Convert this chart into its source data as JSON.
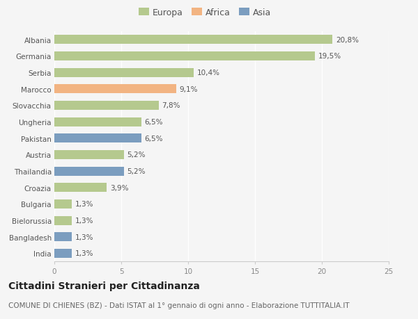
{
  "categories": [
    "Albania",
    "Germania",
    "Serbia",
    "Marocco",
    "Slovacchia",
    "Ungheria",
    "Pakistan",
    "Austria",
    "Thailandia",
    "Croazia",
    "Bulgaria",
    "Bielorussia",
    "Bangladesh",
    "India"
  ],
  "values": [
    20.8,
    19.5,
    10.4,
    9.1,
    7.8,
    6.5,
    6.5,
    5.2,
    5.2,
    3.9,
    1.3,
    1.3,
    1.3,
    1.3
  ],
  "labels": [
    "20,8%",
    "19,5%",
    "10,4%",
    "9,1%",
    "7,8%",
    "6,5%",
    "6,5%",
    "5,2%",
    "5,2%",
    "3,9%",
    "1,3%",
    "1,3%",
    "1,3%",
    "1,3%"
  ],
  "continent": [
    "Europa",
    "Europa",
    "Europa",
    "Africa",
    "Europa",
    "Europa",
    "Asia",
    "Europa",
    "Asia",
    "Europa",
    "Europa",
    "Europa",
    "Asia",
    "Asia"
  ],
  "colors": {
    "Europa": "#b5c98e",
    "Africa": "#f2b482",
    "Asia": "#7b9dbf"
  },
  "legend_items": [
    "Europa",
    "Africa",
    "Asia"
  ],
  "xlim": [
    0,
    25
  ],
  "xticks": [
    0,
    5,
    10,
    15,
    20,
    25
  ],
  "title": "Cittadini Stranieri per Cittadinanza",
  "subtitle": "COMUNE DI CHIENES (BZ) - Dati ISTAT al 1° gennaio di ogni anno - Elaborazione TUTTITALIA.IT",
  "bg_color": "#f5f5f5",
  "bar_height": 0.55,
  "title_fontsize": 10,
  "subtitle_fontsize": 7.5,
  "label_fontsize": 7.5,
  "tick_fontsize": 7.5,
  "legend_fontsize": 9
}
